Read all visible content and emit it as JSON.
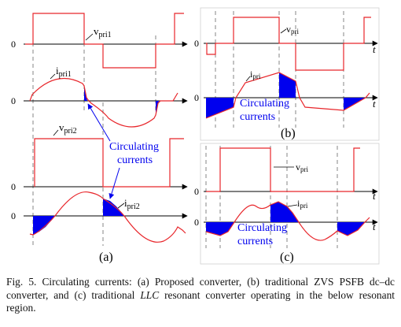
{
  "panels": {
    "a": {
      "label": "(a)",
      "zero": "0",
      "v_pri1": {
        "main": "v",
        "sub": "pri1"
      },
      "i_pri1": {
        "main": "i",
        "sub": "pri1"
      },
      "v_pri2": {
        "main": "v",
        "sub": "pri2"
      },
      "i_pri2": {
        "main": "i",
        "sub": "pri2"
      },
      "circulating": [
        "Circulating",
        "currents"
      ]
    },
    "b": {
      "label": "(b)",
      "zero": "0",
      "t": "t",
      "v_pri": {
        "main": "v",
        "sub": "pri"
      },
      "i_pri": {
        "main": "i",
        "sub": "pri"
      },
      "circulating": [
        "Circulating",
        "currents"
      ]
    },
    "c": {
      "label": "(c)",
      "zero": "0",
      "t": "t",
      "v_pri": {
        "main": "v",
        "sub": "pri"
      },
      "i_pri": {
        "main": "i",
        "sub": "pri"
      },
      "circulating": [
        "Circulating",
        "currents"
      ]
    }
  },
  "caption": {
    "prefix": "Fig. 5.    Circulating currents: (a) Proposed converter, (b) traditional ZVS PSFB dc–dc converter, and (c) traditional ",
    "italic": "LLC",
    "suffix": " resonant converter operating in the below resonant region."
  },
  "colors": {
    "waveform": "#e8262b",
    "fill": "#0000ee",
    "annotation": "#0000ee",
    "axis": "#000000",
    "guide": "#666666"
  }
}
